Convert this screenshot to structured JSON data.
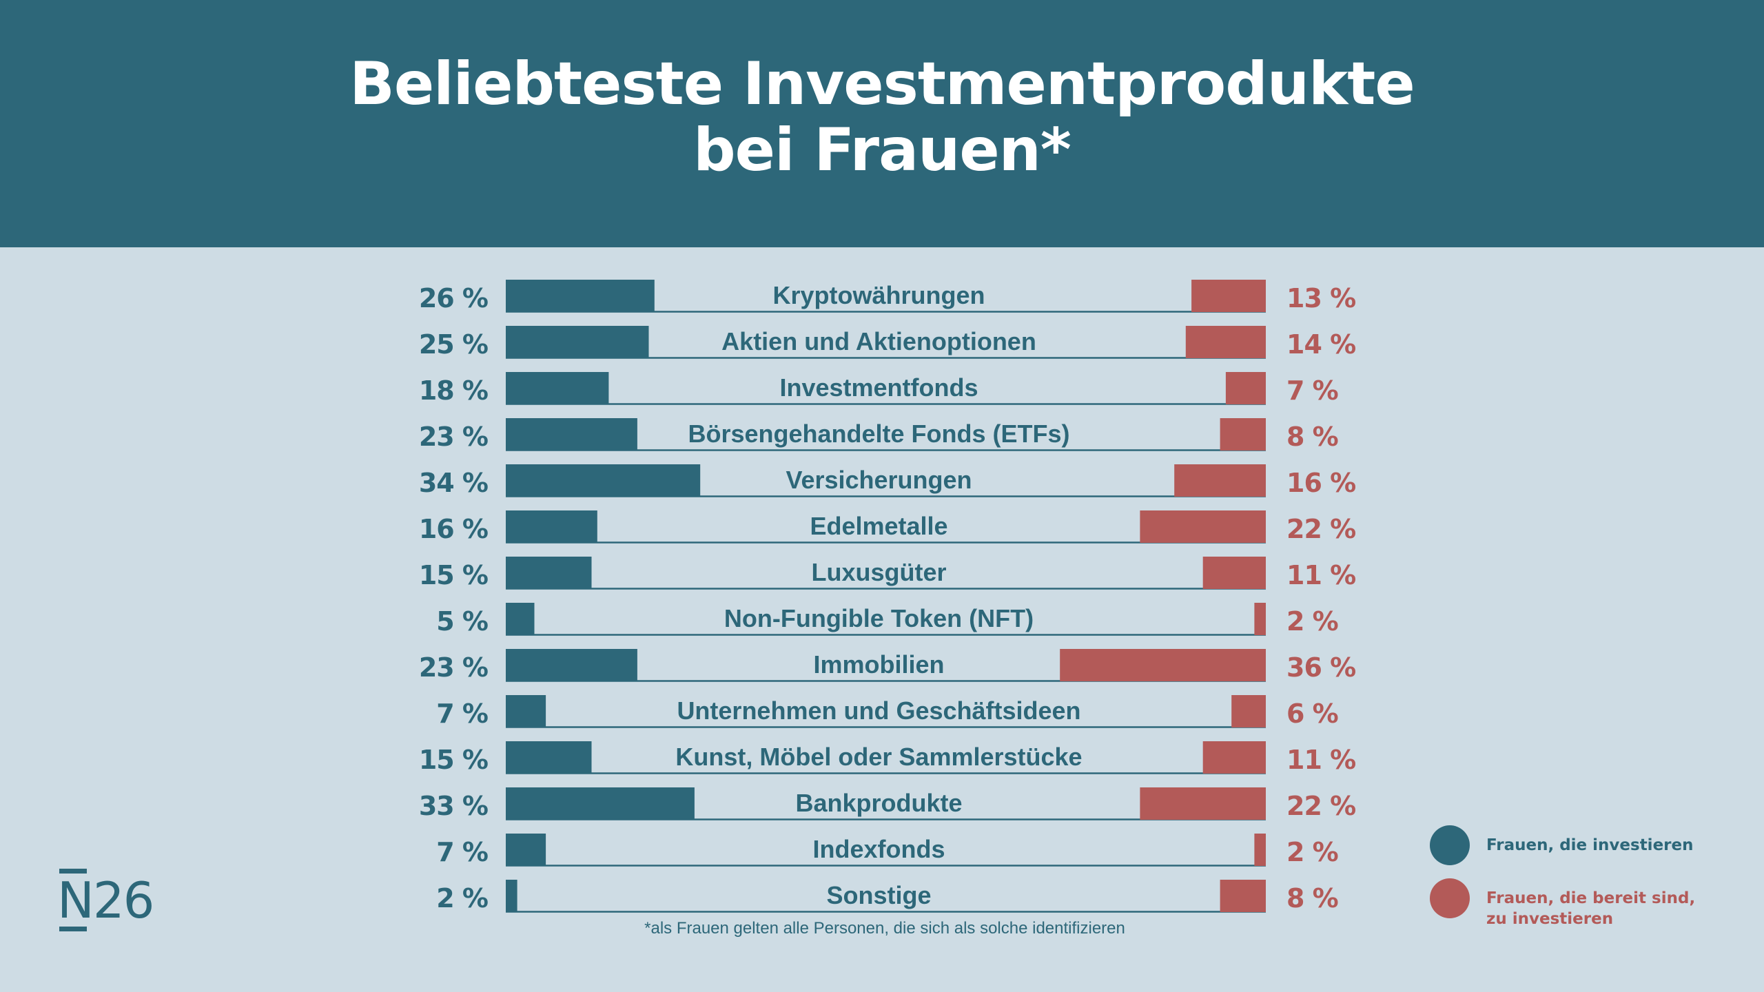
{
  "header": {
    "title_line1": "Beliebteste Investmentprodukte",
    "title_line2": "bei Frauen*"
  },
  "colors": {
    "header_bg": "#2d6779",
    "background": "#cedce4",
    "investing": "#2d6779",
    "willing": "#b35a58"
  },
  "footnote": "*als Frauen gelten alle Personen, die sich als solche identifizieren",
  "legend": [
    {
      "label": "Frauen, die investieren",
      "color": "#2d6779"
    },
    {
      "label": "Frauen, die bereit sind,\nzu investieren",
      "color": "#b35a58"
    }
  ],
  "logo": {
    "text": "N26"
  },
  "chart_data": {
    "type": "bar",
    "orientation": "horizontal-diverging",
    "title": "Beliebteste Investmentprodukte bei Frauen*",
    "unit": "%",
    "categories": [
      "Kryptowährungen",
      "Aktien und Aktienoptionen",
      "Investmentfonds",
      "Börsengehandelte Fonds (ETFs)",
      "Versicherungen",
      "Edelmetalle",
      "Luxusgüter",
      "Non-Fungible Token (NFT)",
      "Immobilien",
      "Unternehmen und Geschäftsideen",
      "Kunst, Möbel oder Sammlerstücke",
      "Bankprodukte",
      "Indexfonds",
      "Sonstige"
    ],
    "series": [
      {
        "name": "Frauen, die investieren",
        "side": "left",
        "color": "#2d6779",
        "values": [
          26,
          25,
          18,
          23,
          34,
          16,
          15,
          5,
          23,
          7,
          15,
          33,
          7,
          2
        ]
      },
      {
        "name": "Frauen, die bereit sind, zu investieren",
        "side": "right",
        "color": "#b35a58",
        "values": [
          13,
          14,
          7,
          8,
          16,
          22,
          11,
          2,
          36,
          6,
          11,
          22,
          2,
          8
        ]
      }
    ],
    "legend_position": "bottom-right",
    "xlim": [
      0,
      40
    ],
    "grid": false
  }
}
